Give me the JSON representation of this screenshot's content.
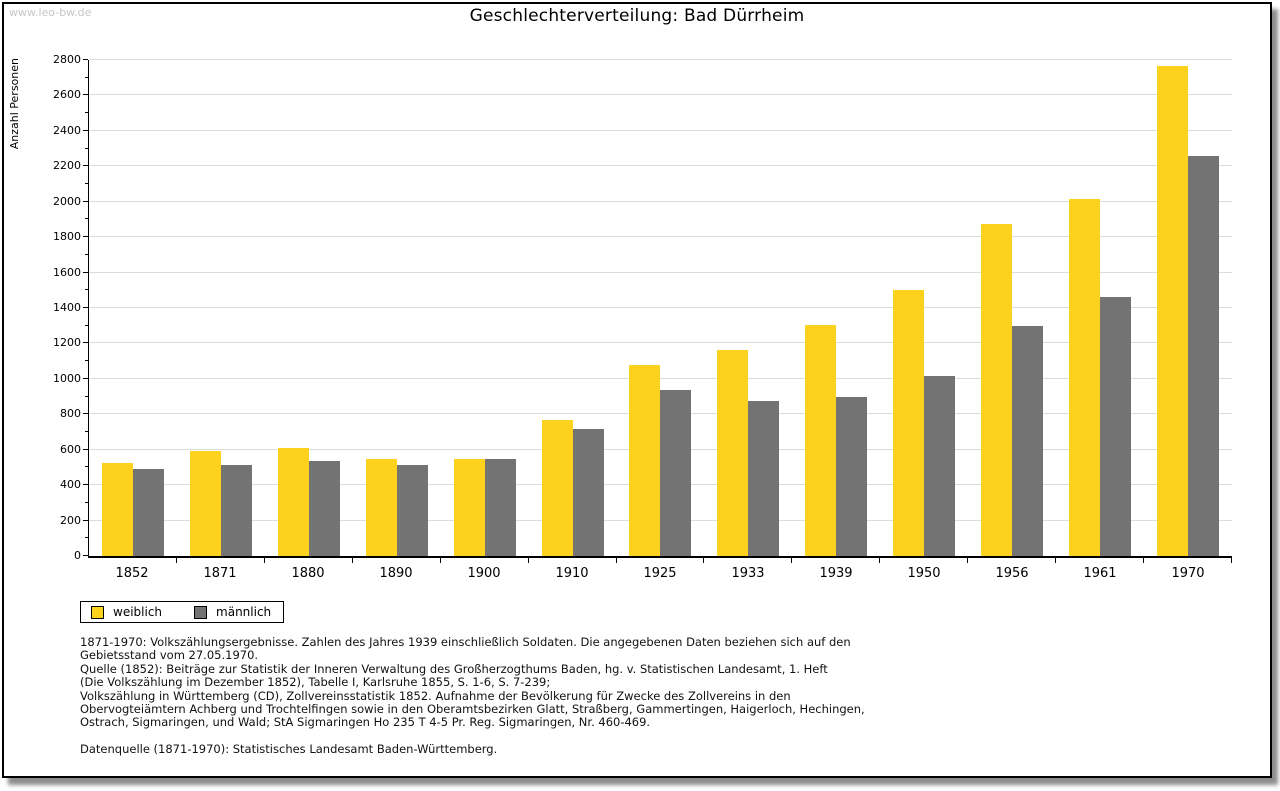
{
  "watermark": "www.leo-bw.de",
  "header": {
    "title": "Geschlechterverteilung: Bad Dürrheim"
  },
  "chart_data": {
    "type": "bar",
    "title": "Geschlechterverteilung: Bad Dürrheim",
    "xlabel": "",
    "ylabel": "Anzahl Personen",
    "ylim": [
      0,
      2800
    ],
    "ytick_step": 200,
    "yminor_step": 100,
    "grid": true,
    "legend_position": "bottom-left",
    "categories": [
      "1852",
      "1871",
      "1880",
      "1890",
      "1900",
      "1910",
      "1925",
      "1933",
      "1939",
      "1950",
      "1956",
      "1961",
      "1970"
    ],
    "series": [
      {
        "name": "weiblich",
        "color": "#fcd21c",
        "values": [
          525,
          595,
          610,
          550,
          550,
          770,
          1080,
          1165,
          1305,
          1500,
          1875,
          2015,
          2765
        ]
      },
      {
        "name": "männlich",
        "color": "#737373",
        "values": [
          490,
          515,
          535,
          515,
          545,
          715,
          935,
          875,
          895,
          1015,
          1300,
          1465,
          2260
        ]
      }
    ]
  },
  "legend": {
    "items": [
      {
        "label": "weiblich",
        "color": "#fcd21c"
      },
      {
        "label": "männlich",
        "color": "#737373"
      }
    ]
  },
  "footnote": {
    "lines": [
      "1871-1970: Volkszählungsergebnisse. Zahlen des Jahres 1939 einschließlich Soldaten. Die angegebenen Daten beziehen sich auf den",
      "Gebietsstand vom 27.05.1970.",
      "Quelle (1852): Beiträge zur Statistik der Inneren Verwaltung des Großherzogthums Baden, hg. v. Statistischen Landesamt, 1. Heft",
      "(Die Volkszählung im Dezember 1852), Tabelle I, Karlsruhe 1855, S. 1-6, S. 7-239;",
      "Volkszählung in Württemberg (CD), Zollvereinsstatistik 1852. Aufnahme der Bevölkerung für Zwecke des Zollvereins in den",
      "Obervogteiämtern Achberg und Trochtelfingen sowie in den Oberamtsbezirken Glatt, Straßberg, Gammertingen, Haigerloch, Hechingen,",
      "Ostrach, Sigmaringen, und Wald; StA Sigmaringen Ho 235 T 4-5 Pr. Reg. Sigmaringen, Nr. 460-469."
    ],
    "datasource": "Datenquelle (1871-1970): Statistisches Landesamt Baden-Württemberg."
  },
  "colors": {
    "female_bar": "#fcd21c",
    "male_bar": "#737373",
    "gridline": "#dcdcdc",
    "watermark": "#c6c6c6",
    "frame_border": "#000000"
  }
}
